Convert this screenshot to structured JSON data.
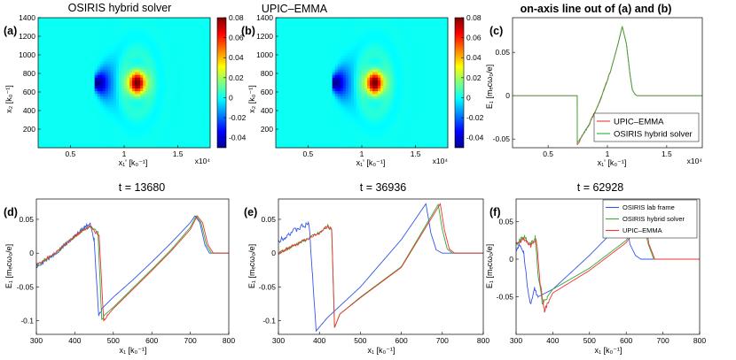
{
  "figure": {
    "colors": {
      "osiris_lab": "#3355ee",
      "osiris_hybrid": "#33aa33",
      "upic": "#ee3333",
      "frame": "#000000"
    },
    "exponent_label": "x10⁴"
  },
  "chart_data": [
    {
      "id": "a",
      "type": "heatmap",
      "panel_label": "(a)",
      "title": "OSIRIS hybrid solver",
      "xlabel": "x₁' [k₀⁻¹]",
      "ylabel": "x₂ [k₀⁻¹]",
      "xlim": [
        2000,
        18000
      ],
      "ylim": [
        0,
        1400
      ],
      "xticks": [
        {
          "v": 5000,
          "t": "0.5"
        },
        {
          "v": 10000,
          "t": "1"
        },
        {
          "v": 15000,
          "t": "1.5"
        }
      ],
      "yticks": [
        {
          "v": 200,
          "t": "200"
        },
        {
          "v": 400,
          "t": "400"
        },
        {
          "v": 600,
          "t": "600"
        },
        {
          "v": 800,
          "t": "800"
        },
        {
          "v": 1000,
          "t": "1000"
        },
        {
          "v": 1200,
          "t": "1200"
        },
        {
          "v": 1400,
          "t": "1400"
        }
      ],
      "x_exponent": "x10⁴",
      "colorbar": {
        "range": [
          -0.05,
          0.08
        ],
        "ticks": [
          {
            "v": 0.08,
            "t": "0.08"
          },
          {
            "v": 0.06,
            "t": "0.06"
          },
          {
            "v": 0.04,
            "t": "0.04"
          },
          {
            "v": 0.02,
            "t": "0.02"
          },
          {
            "v": 0,
            "t": "0"
          },
          {
            "v": -0.02,
            "t": "-0.02"
          },
          {
            "v": -0.04,
            "t": "-0.04"
          }
        ]
      },
      "field": {
        "wake_front_x": 7400,
        "peak_x": 11200,
        "center_y": 700,
        "min": -0.05,
        "max": 0.08
      }
    },
    {
      "id": "b",
      "type": "heatmap",
      "panel_label": "(b)",
      "title": "UPIC–EMMA",
      "xlabel": "x₁' [k₀⁻¹]",
      "ylabel": "x₂ [k₀⁻¹]",
      "xlim": [
        2000,
        18000
      ],
      "ylim": [
        0,
        1400
      ],
      "xticks": [
        {
          "v": 5000,
          "t": "0.5"
        },
        {
          "v": 10000,
          "t": "1"
        },
        {
          "v": 15000,
          "t": "1.5"
        }
      ],
      "yticks": [
        {
          "v": 200,
          "t": "200"
        },
        {
          "v": 400,
          "t": "400"
        },
        {
          "v": 600,
          "t": "600"
        },
        {
          "v": 800,
          "t": "800"
        },
        {
          "v": 1000,
          "t": "1000"
        },
        {
          "v": 1200,
          "t": "1200"
        },
        {
          "v": 1400,
          "t": "1400"
        }
      ],
      "x_exponent": "x10⁴",
      "colorbar": {
        "range": [
          -0.05,
          0.08
        ],
        "ticks": [
          {
            "v": 0.08,
            "t": "0.08"
          },
          {
            "v": 0.06,
            "t": "0.06"
          },
          {
            "v": 0.04,
            "t": "0.04"
          },
          {
            "v": 0.02,
            "t": "0.02"
          },
          {
            "v": 0,
            "t": "0"
          },
          {
            "v": -0.02,
            "t": "-0.02"
          },
          {
            "v": -0.04,
            "t": "-0.04"
          }
        ]
      },
      "field": {
        "wake_front_x": 7400,
        "peak_x": 11200,
        "center_y": 700,
        "min": -0.05,
        "max": 0.08
      }
    },
    {
      "id": "c",
      "type": "line",
      "panel_label": "(c)",
      "title": "on-axis line out of (a) and (b)",
      "xlabel": "x₁' [k₀⁻¹]",
      "ylabel": "E₁ [mₑcω₀/e]",
      "xlim": [
        2000,
        18000
      ],
      "ylim": [
        -0.06,
        0.09
      ],
      "xticks": [
        {
          "v": 5000,
          "t": "0.5"
        },
        {
          "v": 10000,
          "t": "1"
        },
        {
          "v": 15000,
          "t": "1.5"
        }
      ],
      "yticks": [
        {
          "v": 0.05,
          "t": "0.05"
        },
        {
          "v": 0,
          "t": "0"
        },
        {
          "v": -0.05,
          "t": "-0.05"
        }
      ],
      "x_exponent": "x10⁴",
      "legend": {
        "position": "lower-right",
        "entries": [
          "UPIC–EMMA",
          "OSIRIS hybrid solver"
        ]
      },
      "series": [
        {
          "name": "UPIC–EMMA",
          "color": "#ee3333",
          "noise": 0.0012,
          "x": [
            2000,
            7450,
            7460,
            8400,
            9400,
            10300,
            10900,
            11250,
            11600,
            11900,
            12100,
            12300,
            12500,
            18000
          ],
          "y": [
            0,
            0,
            -0.056,
            -0.035,
            -0.005,
            0.03,
            0.06,
            0.08,
            0.06,
            0.025,
            0.007,
            0.002,
            0,
            0
          ]
        },
        {
          "name": "OSIRIS hybrid solver",
          "color": "#33aa33",
          "noise": 0.0012,
          "x": [
            2000,
            7450,
            7460,
            8400,
            9400,
            10300,
            10900,
            11250,
            11600,
            11900,
            12100,
            12300,
            12500,
            18000
          ],
          "y": [
            0,
            0,
            -0.055,
            -0.035,
            -0.005,
            0.03,
            0.06,
            0.08,
            0.06,
            0.025,
            0.007,
            0.002,
            0,
            0
          ]
        }
      ]
    },
    {
      "id": "d",
      "type": "line",
      "panel_label": "(d)",
      "title": "t = 13680",
      "xlabel": "x₁ [k₀⁻¹]",
      "ylabel": "E₁ [mₑcω₀/e]",
      "xlim": [
        300,
        800
      ],
      "ylim": [
        -0.12,
        0.08
      ],
      "xticks": [
        {
          "v": 300,
          "t": "300"
        },
        {
          "v": 400,
          "t": "400"
        },
        {
          "v": 500,
          "t": "500"
        },
        {
          "v": 600,
          "t": "600"
        },
        {
          "v": 700,
          "t": "700"
        },
        {
          "v": 800,
          "t": "800"
        }
      ],
      "yticks": [
        {
          "v": 0.05,
          "t": "0.05"
        },
        {
          "v": 0,
          "t": "0"
        },
        {
          "v": -0.05,
          "t": "-0.05"
        },
        {
          "v": -0.1,
          "t": "-0.1"
        }
      ],
      "series": [
        {
          "name": "OSIRIS lab frame",
          "color": "#3355ee",
          "noise": 0.003,
          "x": [
            300,
            350,
            400,
            425,
            440,
            450,
            462,
            470,
            500,
            550,
            600,
            650,
            700,
            712,
            725,
            738,
            750,
            800
          ],
          "y": [
            -0.02,
            0.0,
            0.025,
            0.038,
            0.045,
            0.02,
            -0.09,
            -0.082,
            -0.065,
            -0.04,
            -0.013,
            0.015,
            0.045,
            0.055,
            0.045,
            0.012,
            0.0,
            0.0
          ]
        },
        {
          "name": "OSIRIS hybrid solver",
          "color": "#33aa33",
          "noise": 0.0025,
          "x": [
            300,
            350,
            400,
            425,
            440,
            460,
            470,
            480,
            500,
            550,
            600,
            650,
            700,
            715,
            728,
            742,
            755,
            800
          ],
          "y": [
            -0.018,
            0.0,
            0.025,
            0.035,
            0.04,
            0.03,
            -0.1,
            -0.09,
            -0.08,
            -0.052,
            -0.024,
            0.005,
            0.038,
            0.055,
            0.045,
            0.012,
            0.0,
            0.0
          ]
        },
        {
          "name": "UPIC–EMMA",
          "color": "#ee3333",
          "noise": 0.002,
          "x": [
            300,
            350,
            400,
            425,
            440,
            463,
            475,
            485,
            500,
            550,
            600,
            650,
            700,
            718,
            732,
            746,
            760,
            800
          ],
          "y": [
            -0.017,
            0.0,
            0.025,
            0.035,
            0.04,
            0.025,
            -0.1,
            -0.092,
            -0.082,
            -0.054,
            -0.026,
            0.003,
            0.035,
            0.055,
            0.045,
            0.012,
            0.0,
            0.0
          ]
        }
      ]
    },
    {
      "id": "e",
      "type": "line",
      "panel_label": "(e)",
      "title": "t = 36936",
      "xlabel": "x₁ [k₀⁻¹]",
      "ylabel": "E₁ [mₑcω₀/e]",
      "xlim": [
        300,
        800
      ],
      "ylim": [
        -0.12,
        0.08
      ],
      "xticks": [
        {
          "v": 300,
          "t": "300"
        },
        {
          "v": 400,
          "t": "400"
        },
        {
          "v": 500,
          "t": "500"
        },
        {
          "v": 600,
          "t": "600"
        },
        {
          "v": 700,
          "t": "700"
        },
        {
          "v": 800,
          "t": "800"
        }
      ],
      "yticks": [
        {
          "v": 0.05,
          "t": "0.05"
        },
        {
          "v": 0,
          "t": "0"
        },
        {
          "v": -0.05,
          "t": "-0.05"
        },
        {
          "v": -0.1,
          "t": "-0.1"
        }
      ],
      "series": [
        {
          "name": "OSIRIS lab frame",
          "color": "#3355ee",
          "noise": 0.004,
          "x": [
            300,
            330,
            360,
            375,
            383,
            392,
            420,
            500,
            600,
            660,
            672,
            685,
            700,
            800
          ],
          "y": [
            0.018,
            0.03,
            0.04,
            0.042,
            -0.03,
            -0.115,
            -0.095,
            -0.05,
            0.02,
            0.073,
            0.03,
            0.005,
            0.0,
            0.0
          ]
        },
        {
          "name": "OSIRIS hybrid solver",
          "color": "#33aa33",
          "noise": 0.0025,
          "x": [
            300,
            350,
            400,
            420,
            430,
            437,
            450,
            500,
            600,
            690,
            700,
            712,
            725,
            800
          ],
          "y": [
            0.0,
            0.015,
            0.03,
            0.04,
            0.035,
            -0.11,
            -0.09,
            -0.065,
            -0.02,
            0.072,
            0.035,
            0.006,
            0.0,
            0.0
          ]
        },
        {
          "name": "UPIC–EMMA",
          "color": "#ee3333",
          "noise": 0.002,
          "x": [
            300,
            350,
            400,
            420,
            430,
            437,
            450,
            500,
            600,
            695,
            705,
            717,
            730,
            800
          ],
          "y": [
            0.0,
            0.015,
            0.03,
            0.04,
            0.035,
            -0.11,
            -0.09,
            -0.066,
            -0.021,
            0.073,
            0.035,
            0.006,
            0.0,
            0.0
          ]
        }
      ]
    },
    {
      "id": "f",
      "type": "line",
      "panel_label": "(f)",
      "title": "t = 62928",
      "xlabel": "x₁ [k₀⁻¹]",
      "ylabel": "E₁ [mₑcω₀/e]",
      "xlim": [
        300,
        800
      ],
      "ylim": [
        -0.1,
        0.08
      ],
      "xticks": [
        {
          "v": 300,
          "t": "300"
        },
        {
          "v": 400,
          "t": "400"
        },
        {
          "v": 500,
          "t": "500"
        },
        {
          "v": 600,
          "t": "600"
        },
        {
          "v": 700,
          "t": "700"
        },
        {
          "v": 800,
          "t": "800"
        }
      ],
      "yticks": [
        {
          "v": 0.05,
          "t": "0.05"
        },
        {
          "v": 0,
          "t": "0"
        },
        {
          "v": -0.05,
          "t": "-0.05"
        }
      ],
      "legend": {
        "position": "top-right",
        "entries": [
          "OSIRIS lab frame",
          "OSIRIS hybrid solver",
          "UPIC–EMMA"
        ]
      },
      "series": [
        {
          "name": "OSIRIS lab frame",
          "color": "#3355ee",
          "noise": 0.003,
          "x": [
            300,
            310,
            320,
            332,
            340,
            350,
            360,
            380,
            400,
            500,
            590,
            602,
            610,
            625,
            640,
            800
          ],
          "y": [
            0.01,
            0.02,
            0.01,
            -0.04,
            -0.06,
            -0.04,
            -0.05,
            -0.045,
            -0.04,
            0.005,
            0.05,
            0.05,
            0.02,
            0.005,
            0.0,
            0.0
          ]
        },
        {
          "name": "OSIRIS hybrid solver",
          "color": "#33aa33",
          "noise": 0.003,
          "x": [
            300,
            320,
            340,
            352,
            360,
            372,
            385,
            400,
            500,
            600,
            630,
            645,
            660,
            675,
            800
          ],
          "y": [
            0.02,
            0.03,
            0.02,
            0.03,
            -0.02,
            -0.06,
            -0.05,
            -0.04,
            -0.012,
            0.025,
            0.05,
            0.05,
            0.02,
            0.0,
            0.0
          ]
        },
        {
          "name": "UPIC–EMMA",
          "color": "#ee3333",
          "noise": 0.003,
          "x": [
            300,
            320,
            340,
            355,
            365,
            377,
            390,
            400,
            500,
            600,
            640,
            652,
            662,
            678,
            800
          ],
          "y": [
            0.018,
            0.028,
            0.018,
            0.028,
            -0.03,
            -0.068,
            -0.055,
            -0.045,
            -0.015,
            0.022,
            0.05,
            0.05,
            0.02,
            0.0,
            0.0
          ]
        }
      ]
    }
  ]
}
